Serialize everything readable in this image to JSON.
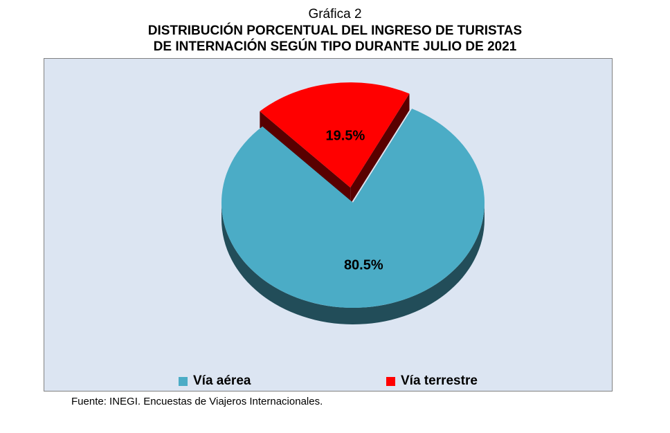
{
  "header": {
    "kicker": "Gráfica 2",
    "title_line1": "DISTRIBUCIÓN PORCENTUAL DEL INGRESO DE TURISTAS",
    "title_line2": "DE INTERNACIÓN SEGÚN TIPO DURANTE JULIO DE 2021"
  },
  "chart_data": {
    "type": "pie",
    "title": "DISTRIBUCIÓN PORCENTUAL DEL INGRESO DE TURISTAS DE INTERNACIÓN SEGÚN TIPO DURANTE JULIO DE 2021",
    "categories": [
      "Vía aérea",
      "Vía terrestre"
    ],
    "values": [
      80.5,
      19.5
    ],
    "data_labels": [
      "80.5%",
      "19.5%"
    ],
    "colors": [
      "#4bacc6",
      "#ff0000"
    ],
    "exploded": [
      "Vía terrestre"
    ],
    "legend_position": "bottom"
  },
  "legend": {
    "items": [
      {
        "label": "Vía aérea",
        "color": "#4bacc6"
      },
      {
        "label": "Vía terrestre",
        "color": "#ff0000"
      }
    ]
  },
  "footer": {
    "source": "Fuente: INEGI. Encuestas de Viajeros Internacionales."
  }
}
